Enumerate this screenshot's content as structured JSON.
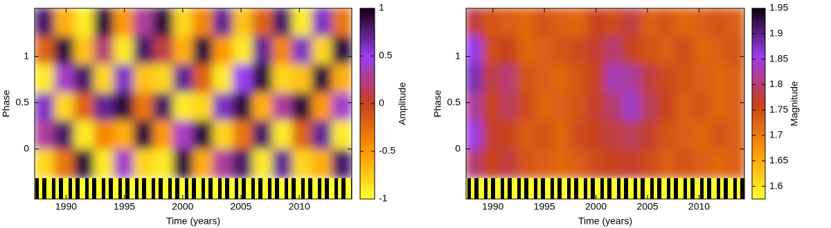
{
  "chart_data": [
    {
      "type": "heatmap",
      "xlabel": "Time (years)",
      "ylabel": "Phase",
      "colorbar_label": "Amplitude",
      "x": [
        1988.15,
        1989.85,
        1991.55,
        1993.25,
        1994.95,
        1996.65,
        1998.35,
        2000.05,
        2001.75,
        2003.45,
        2005.15,
        2006.85,
        2008.55,
        2010.25,
        2011.95,
        2013.65
      ],
      "y": [
        1.37,
        1.06,
        0.76,
        0.45,
        0.15,
        -0.16
      ],
      "values": [
        [
          0.8,
          -0.6,
          -0.9,
          0.9,
          -0.5,
          0.3,
          0.9,
          -0.8,
          -0.4,
          0.7,
          -0.7,
          -0.2,
          0.8,
          -0.9,
          0.6,
          -0.3
        ],
        [
          -0.2,
          0.9,
          -0.7,
          0.2,
          -0.9,
          0.8,
          0.1,
          -0.6,
          0.9,
          -0.5,
          -0.9,
          0.7,
          -0.4,
          0.6,
          -0.8,
          0.9
        ],
        [
          -0.9,
          0.4,
          0.8,
          -0.8,
          0.6,
          -0.7,
          -0.8,
          0.7,
          -0.2,
          -0.9,
          0.5,
          0.9,
          -0.8,
          -0.7,
          0.9,
          -0.6
        ],
        [
          0.6,
          -0.8,
          -0.2,
          0.7,
          0.9,
          -0.3,
          0.8,
          -0.9,
          -0.8,
          0.6,
          0.9,
          -0.6,
          0.3,
          0.9,
          -0.5,
          0.4
        ],
        [
          0.3,
          0.8,
          -0.9,
          -0.4,
          -0.6,
          0.9,
          -0.5,
          0.4,
          0.9,
          -0.8,
          -0.3,
          0.8,
          -0.9,
          -0.2,
          0.7,
          -0.9
        ],
        [
          -0.8,
          -0.3,
          0.9,
          -0.9,
          0.4,
          -0.8,
          -0.9,
          0.9,
          -0.6,
          0.3,
          0.8,
          -0.9,
          0.7,
          -0.8,
          -0.6,
          0.8
        ]
      ],
      "xlim": [
        1987.3,
        2014.5
      ],
      "xticks": [
        1990,
        1995,
        2000,
        2005,
        2010
      ],
      "ylim": [
        -0.54,
        1.52
      ],
      "yticks": [
        0,
        0.5,
        1
      ],
      "clim": [
        -1,
        1
      ],
      "cticks": [
        -1,
        -0.5,
        0,
        0.5,
        1
      ],
      "colormap": [
        "#ffff30",
        "#ff9800",
        "#c8401e",
        "#9b3cf0",
        "#14000c"
      ]
    },
    {
      "type": "heatmap",
      "xlabel": "Time (years)",
      "ylabel": "Phase",
      "colorbar_label": "Magnitude",
      "x": [
        1988.15,
        1989.85,
        1991.55,
        1993.25,
        1994.95,
        1996.65,
        1998.35,
        2000.05,
        2001.75,
        2003.45,
        2005.15,
        2006.85,
        2008.55,
        2010.25,
        2011.95,
        2013.65
      ],
      "y": [
        1.37,
        1.06,
        0.76,
        0.45,
        0.15,
        -0.16
      ],
      "values": [
        [
          1.78,
          1.74,
          1.73,
          1.72,
          1.74,
          1.73,
          1.72,
          1.76,
          1.75,
          1.78,
          1.73,
          1.74,
          1.72,
          1.73,
          1.74,
          1.73
        ],
        [
          1.86,
          1.75,
          1.76,
          1.72,
          1.73,
          1.74,
          1.75,
          1.77,
          1.8,
          1.76,
          1.74,
          1.73,
          1.75,
          1.72,
          1.73,
          1.74
        ],
        [
          1.88,
          1.78,
          1.8,
          1.74,
          1.73,
          1.72,
          1.74,
          1.76,
          1.83,
          1.82,
          1.78,
          1.75,
          1.74,
          1.73,
          1.72,
          1.73
        ],
        [
          1.82,
          1.76,
          1.79,
          1.75,
          1.72,
          1.73,
          1.74,
          1.77,
          1.8,
          1.84,
          1.79,
          1.76,
          1.73,
          1.74,
          1.72,
          1.73
        ],
        [
          1.85,
          1.77,
          1.76,
          1.73,
          1.74,
          1.72,
          1.75,
          1.76,
          1.78,
          1.79,
          1.77,
          1.74,
          1.73,
          1.72,
          1.74,
          1.73
        ],
        [
          1.8,
          1.76,
          1.78,
          1.74,
          1.73,
          1.72,
          1.73,
          1.75,
          1.76,
          1.77,
          1.75,
          1.73,
          1.74,
          1.73,
          1.72,
          1.73
        ]
      ],
      "xlim": [
        1987.4,
        2014.4
      ],
      "xticks": [
        1990,
        1995,
        2000,
        2005,
        2010
      ],
      "ylim": [
        -0.54,
        1.52
      ],
      "yticks": [
        0,
        0.5,
        1
      ],
      "clim": [
        1.575,
        1.95
      ],
      "cticks": [
        1.6,
        1.65,
        1.7,
        1.75,
        1.8,
        1.85,
        1.9,
        1.95
      ],
      "colormap": [
        "#ffff30",
        "#ff9800",
        "#c8401e",
        "#9b3cf0",
        "#14000c"
      ]
    }
  ]
}
